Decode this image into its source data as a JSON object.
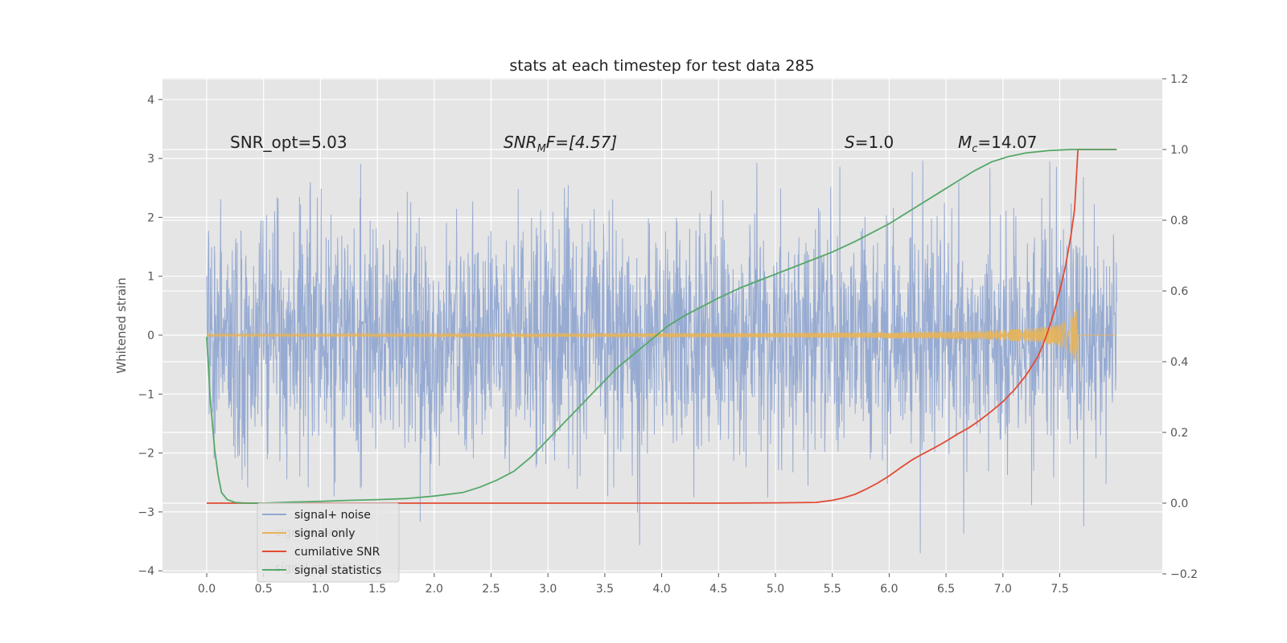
{
  "chart_data": {
    "type": "line",
    "title": "stats at each timestep for test data 285",
    "xlabel": "",
    "ylabel": "Whitened strain",
    "y2label": "",
    "xlim": [
      -0.35,
      8.4
    ],
    "ylim": [
      -4.2,
      4.4
    ],
    "y2lim": [
      -0.2,
      1.2
    ],
    "xticks": [
      "0.0",
      "0.5",
      "1.0",
      "1.5",
      "2.0",
      "2.5",
      "3.0",
      "3.5",
      "4.0",
      "4.5",
      "5.0",
      "5.5",
      "6.0",
      "6.5",
      "7.0",
      "7.5"
    ],
    "yticks": [
      "−4",
      "−3",
      "−2",
      "−1",
      "0",
      "1",
      "2",
      "3",
      "4"
    ],
    "y2ticks": [
      "−0.2",
      "0.0",
      "0.2",
      "0.4",
      "0.6",
      "0.8",
      "1.0",
      "1.2"
    ],
    "grid": true,
    "legend": "lower-left",
    "colors": {
      "background": "#e5e5e5",
      "noise": "#92a8d1",
      "signal": "#e8b456",
      "snr": "#e24a33",
      "stats": "#55a868"
    },
    "series": [
      {
        "name": "signal+ noise",
        "axis": "left",
        "description_of_data": "white noise, approx N(0,1) sampled over t in [0, 8.0]",
        "x_range": [
          0,
          8.0
        ],
        "y_std": 1.0
      },
      {
        "name": "signal only",
        "axis": "left",
        "x_range": [
          0,
          8.0
        ],
        "chirp_end": 7.66,
        "peak_amplitude": 0.75
      },
      {
        "name": "cumilative SNR",
        "axis": "right",
        "x": [
          0.0,
          0.5,
          1.0,
          1.5,
          2.0,
          2.5,
          3.0,
          3.5,
          4.0,
          4.5,
          5.0,
          5.36,
          5.5,
          5.6,
          5.7,
          5.8,
          5.9,
          6.0,
          6.1,
          6.2,
          6.3,
          6.4,
          6.5,
          6.6,
          6.7,
          6.8,
          6.9,
          7.0,
          7.1,
          7.2,
          7.3,
          7.35,
          7.4,
          7.45,
          7.5,
          7.55,
          7.6,
          7.63,
          7.66,
          8.0
        ],
        "y": [
          0.0,
          0.0,
          0.0,
          0.0,
          0.0,
          0.0,
          0.0,
          0.0,
          0.0,
          0.0,
          0.001,
          0.002,
          0.008,
          0.015,
          0.025,
          0.04,
          0.057,
          0.077,
          0.1,
          0.122,
          0.14,
          0.157,
          0.175,
          0.195,
          0.213,
          0.235,
          0.26,
          0.287,
          0.32,
          0.36,
          0.41,
          0.445,
          0.49,
          0.54,
          0.6,
          0.67,
          0.76,
          0.83,
          1.0,
          1.0
        ]
      },
      {
        "name": "signal statistics",
        "axis": "right",
        "x": [
          0.0,
          0.03,
          0.07,
          0.1,
          0.13,
          0.18,
          0.25,
          0.35,
          0.5,
          0.75,
          1.0,
          1.25,
          1.5,
          1.75,
          2.0,
          2.25,
          2.4,
          2.55,
          2.7,
          2.85,
          3.0,
          3.15,
          3.3,
          3.45,
          3.6,
          3.75,
          3.9,
          4.05,
          4.2,
          4.35,
          4.5,
          4.7,
          4.9,
          5.1,
          5.3,
          5.5,
          5.7,
          5.85,
          6.0,
          6.15,
          6.3,
          6.45,
          6.6,
          6.75,
          6.9,
          7.05,
          7.2,
          7.4,
          7.6,
          7.8,
          8.0
        ],
        "y": [
          0.47,
          0.3,
          0.15,
          0.08,
          0.03,
          0.01,
          0.002,
          0.0,
          0.0,
          0.003,
          0.005,
          0.008,
          0.01,
          0.013,
          0.02,
          0.03,
          0.045,
          0.065,
          0.09,
          0.13,
          0.18,
          0.23,
          0.28,
          0.33,
          0.38,
          0.42,
          0.46,
          0.5,
          0.53,
          0.555,
          0.58,
          0.61,
          0.635,
          0.66,
          0.685,
          0.71,
          0.74,
          0.765,
          0.79,
          0.82,
          0.85,
          0.88,
          0.91,
          0.94,
          0.965,
          0.98,
          0.99,
          0.997,
          1.0,
          1.0,
          1.0
        ]
      }
    ],
    "annotations": [
      {
        "key": "snr_opt",
        "text": "SNR_opt=5.03",
        "x": 0.2,
        "y": 3.18,
        "italic": false
      },
      {
        "key": "snr_mf",
        "html_main": "SNR",
        "sub": "M",
        "tail": "F=[4.57]",
        "x": 2.6,
        "y": 3.18
      },
      {
        "key": "s_val",
        "main": "S",
        "tail": "=1.0",
        "x": 5.6,
        "y": 3.18
      },
      {
        "key": "mc",
        "main": "M",
        "sub": "c",
        "tail": "=14.07",
        "x": 6.6,
        "y": 3.18
      }
    ],
    "annot_text": {
      "snr_opt": "SNR_opt=5.03",
      "snr_mf_main": "SNR",
      "snr_mf_sub": "M",
      "snr_mf_tail": "F=[4.57]",
      "s_main": "S",
      "s_tail": "=1.0",
      "mc_main": "M",
      "mc_sub": "c",
      "mc_tail": "=14.07"
    },
    "legend_entries": [
      "signal+ noise",
      "signal only",
      "cumilative SNR",
      "signal statistics"
    ],
    "ghost_legend_entries": [
      "signal+ noise",
      "signal statistics"
    ]
  }
}
